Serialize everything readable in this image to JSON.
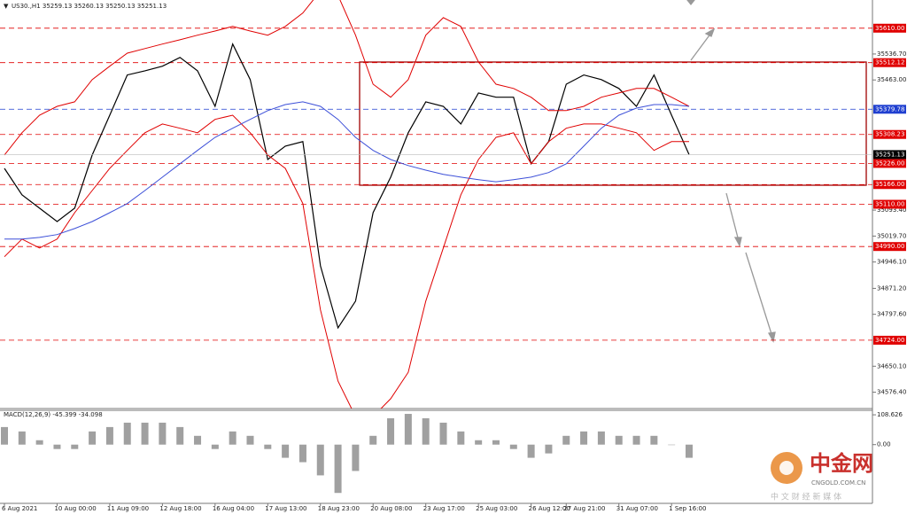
{
  "chart_data": [
    {
      "type": "line",
      "title": "US30.,H1  35259.13 35260.13 35250.13 35251.13",
      "categories": [
        "6 Aug 2021",
        null,
        null,
        "10 Aug 00:00",
        null,
        null,
        "11 Aug 09:00",
        null,
        null,
        "12 Aug 18:00",
        null,
        null,
        "16 Aug 04:00",
        null,
        null,
        "17 Aug 13:00",
        null,
        null,
        "18 Aug 23:00",
        null,
        null,
        "20 Aug 08:00",
        null,
        null,
        "23 Aug 17:00",
        null,
        null,
        "25 Aug 03:00",
        null,
        null,
        "26 Aug 12:00",
        null,
        "27 Aug 21:00",
        null,
        null,
        "31 Aug 07:00",
        null,
        null,
        "1 Sep 16:00",
        null
      ],
      "series": [
        {
          "color": "#000000",
          "values": [
            35212,
            35137,
            35099,
            35061,
            35099,
            35250,
            35363,
            35477,
            35489,
            35502,
            35527,
            35489,
            35388,
            35565,
            35464,
            35237,
            35275,
            35288,
            34935,
            34759,
            34835,
            35086,
            35187,
            35313,
            35401,
            35388,
            35338,
            35426,
            35414,
            35414,
            35225,
            35288,
            35451,
            35477,
            35464,
            35439,
            35388,
            35477,
            35363,
            35251
          ]
        },
        {
          "color": "#e00000",
          "values": [
            35250,
            35313,
            35363,
            35388,
            35401,
            35464,
            35502,
            35539,
            35552,
            35565,
            35577,
            35590,
            35602,
            35615,
            35602,
            35590,
            35615,
            35653,
            35716,
            35703,
            35590,
            35451,
            35414,
            35464,
            35590,
            35640,
            35615,
            35514,
            35451,
            35439,
            35414,
            35376,
            35376,
            35388,
            35414,
            35426,
            35439,
            35439,
            35414,
            35388
          ]
        },
        {
          "color": "#e00000",
          "values": [
            34961,
            35011,
            34986,
            35011,
            35086,
            35149,
            35212,
            35263,
            35313,
            35338,
            35326,
            35313,
            35351,
            35363,
            35313,
            35250,
            35212,
            35112,
            34810,
            34608,
            34507,
            34507,
            34558,
            34633,
            34835,
            34986,
            35137,
            35237,
            35300,
            35313,
            35225,
            35288,
            35326,
            35338,
            35338,
            35326,
            35313,
            35263,
            35288,
            35288
          ]
        },
        {
          "color": "#3c4fd8",
          "values": [
            35011,
            35011,
            35016,
            35024,
            35041,
            35061,
            35086,
            35112,
            35149,
            35187,
            35225,
            35263,
            35300,
            35326,
            35351,
            35376,
            35393,
            35401,
            35388,
            35351,
            35300,
            35263,
            35237,
            35220,
            35207,
            35195,
            35187,
            35180,
            35174,
            35180,
            35187,
            35200,
            35225,
            35275,
            35326,
            35363,
            35383,
            35393,
            35393,
            35388
          ]
        }
      ],
      "ylim": [
        34530,
        35690
      ],
      "yticks": [
        {
          "value": 35536.7,
          "label": "35536.70"
        },
        {
          "value": 35463.0,
          "label": "35463.00"
        },
        {
          "value": 35093.4,
          "label": "35093.40"
        },
        {
          "value": 35019.7,
          "label": "35019.70"
        },
        {
          "value": 34946.1,
          "label": "34946.10"
        },
        {
          "value": 34871.2,
          "label": "34871.20"
        },
        {
          "value": 34797.6,
          "label": "34797.60"
        },
        {
          "value": 34650.1,
          "label": "34650.10"
        },
        {
          "value": 34576.4,
          "label": "34576.40"
        }
      ],
      "levels": [
        {
          "value": 35610.0,
          "label": "35610.00",
          "color": "#e00000"
        },
        {
          "value": 35512.12,
          "label": "35512.12",
          "color": "#e00000"
        },
        {
          "value": 35379.78,
          "label": "35379.78",
          "color": "#1f3fd0"
        },
        {
          "value": 35308.23,
          "label": "35308.23",
          "color": "#e00000"
        },
        {
          "value": 35226.0,
          "label": "35226.00",
          "color": "#e00000"
        },
        {
          "value": 35166.0,
          "label": "35166.00",
          "color": "#e00000"
        },
        {
          "value": 35110.0,
          "label": "35110.00",
          "color": "#e00000"
        },
        {
          "value": 34990.0,
          "label": "34990.00",
          "color": "#e00000"
        },
        {
          "value": 34724.0,
          "label": "34724.00",
          "color": "#e00000"
        }
      ],
      "last": {
        "value": 35251.13,
        "label": "35251.13"
      }
    },
    {
      "type": "bar",
      "title": "MACD(12,26,9) -45.399 -34.098",
      "color": "#a0a0a0",
      "values": [
        64,
        48,
        16,
        -16,
        -16,
        48,
        64,
        80,
        80,
        80,
        64,
        32,
        -16,
        48,
        32,
        -16,
        -48,
        -64,
        -112,
        -176,
        -96,
        32,
        96,
        112,
        96,
        80,
        48,
        16,
        16,
        -16,
        -48,
        -32,
        32,
        48,
        48,
        32,
        32,
        32,
        0,
        -48
      ],
      "ylim": [
        -214,
        125
      ],
      "yticks": [
        {
          "value": 108.626,
          "label": "108.626"
        },
        {
          "value": 0,
          "label": "0.00"
        }
      ]
    }
  ],
  "watermark": {
    "brand": "中金网",
    "site": "CNGOLD.COM.CN",
    "tagline": "中 文 财 经 新 媒 体"
  }
}
